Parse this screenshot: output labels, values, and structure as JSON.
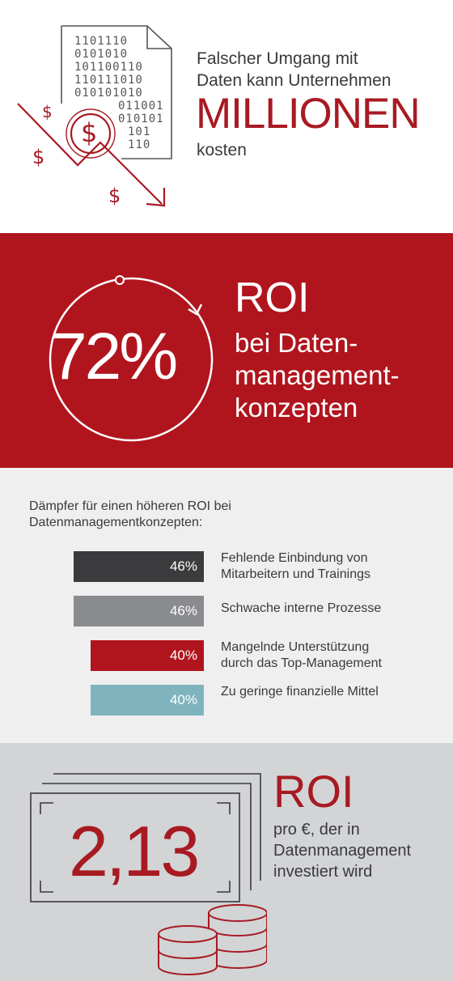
{
  "section1": {
    "binary_lines": [
      "1101110",
      "0101010",
      "101100110",
      "110111010",
      "010101010",
      "011001",
      "010101",
      "101",
      "110"
    ],
    "line1": "Falscher Umgang mit",
    "line2": "Daten kann Unternehmen",
    "emphasis": "MILLIONEN",
    "line4": "kosten",
    "dollar_sign": "$",
    "icon": "document-coin-downtrend-icon"
  },
  "section2": {
    "percent": "72%",
    "title": "ROI",
    "lines": [
      "bei Daten-",
      "management-",
      "konzepten"
    ],
    "background_color": "#b0151e"
  },
  "section3": {
    "intro_line1": "Dämpfer für einen höheren ROI bei",
    "intro_line2": "Datenmanagementkonzepten:",
    "bars": [
      {
        "value": "46%",
        "percent": 46,
        "label_lines": [
          "Fehlende Einbindung von",
          "Mitarbeitern und Trainings"
        ],
        "color": "#3b3b3d"
      },
      {
        "value": "46%",
        "percent": 46,
        "label_lines": [
          "Schwache interne Prozesse"
        ],
        "color": "#8a8b8e"
      },
      {
        "value": "40%",
        "percent": 40,
        "label_lines": [
          "Mangelnde Unterstützung",
          "durch das Top-Management"
        ],
        "color": "#b0151e"
      },
      {
        "value": "40%",
        "percent": 40,
        "label_lines": [
          "Zu geringe finanzielle Mittel"
        ],
        "color": "#7fb4be"
      }
    ]
  },
  "section4": {
    "value": "2,13",
    "title": "ROI",
    "lines": [
      "pro €, der in",
      "Datenmanagement",
      "investiert wird"
    ],
    "icon": "banknotes-coins-icon"
  }
}
